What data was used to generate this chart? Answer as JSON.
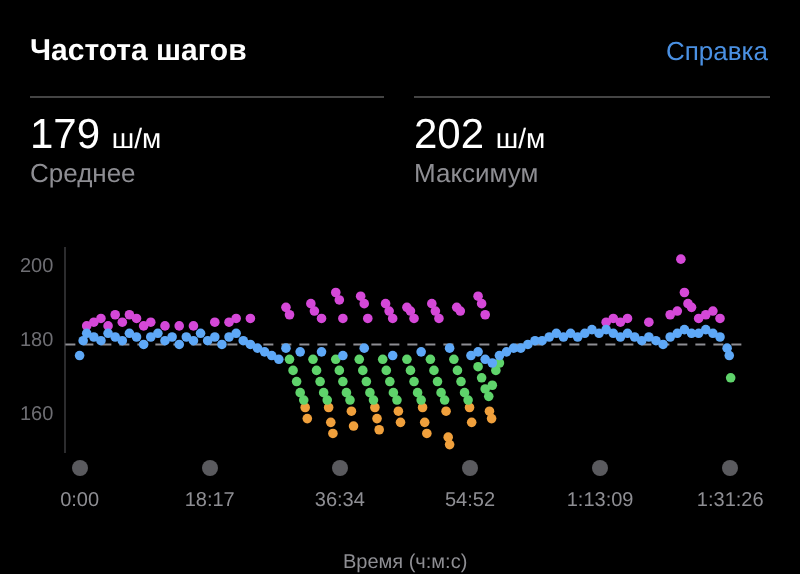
{
  "chart_data": {
    "type": "scatter",
    "title": "Частота шагов",
    "xlabel": "Время (ч:м:с)",
    "annotations": [
      "Справка",
      "179 ш/м",
      "Среднее",
      "202 ш/м",
      "Максимум"
    ],
    "xlim": [
      -2,
      93.5
    ],
    "ylim": [
      150,
      205
    ],
    "xticks": [
      {
        "value": 0,
        "label": "0:00"
      },
      {
        "value": 18.283,
        "label": "18:17"
      },
      {
        "value": 36.567,
        "label": "36:34"
      },
      {
        "value": 54.867,
        "label": "54:52"
      },
      {
        "value": 73.15,
        "label": "1:13:09"
      },
      {
        "value": 91.433,
        "label": "1:31:26"
      }
    ],
    "yticks": [
      160,
      180,
      200
    ],
    "grid": false,
    "legend": false,
    "marker": "circle",
    "ref_lines": [
      {
        "axis": "y",
        "value": 179,
        "label": null,
        "color": "#8e8e93",
        "line_style": "dashed"
      }
    ],
    "series": [
      {
        "color": "#5ea8f7",
        "x": [
          0,
          0.5,
          1,
          2,
          3,
          4,
          5,
          6,
          7,
          8,
          9,
          10,
          11,
          12,
          13,
          14,
          15,
          16,
          17,
          18,
          19,
          20,
          21,
          22,
          23,
          24,
          25,
          26,
          27,
          28,
          29,
          31,
          34,
          37,
          40,
          44,
          48,
          52,
          55,
          56,
          57,
          58,
          59,
          60,
          61,
          62,
          63,
          64,
          65,
          66,
          67,
          68,
          69,
          70,
          71,
          72,
          73,
          74,
          75,
          76,
          77,
          78,
          79,
          80,
          81,
          82,
          83,
          84,
          85,
          86,
          87,
          88,
          89,
          90,
          91,
          91.3
        ],
        "values": [
          176,
          180,
          182,
          181,
          180,
          182,
          181,
          180,
          182,
          181,
          179,
          181,
          182,
          180,
          181,
          179,
          181,
          180,
          182,
          180,
          181,
          179,
          181,
          182,
          180,
          179,
          178,
          177,
          176,
          175,
          178,
          177,
          177,
          176,
          178,
          176,
          177,
          178,
          176,
          177,
          175,
          174,
          176,
          177,
          178,
          178,
          179,
          180,
          180,
          181,
          182,
          181,
          182,
          181,
          182,
          183,
          182,
          183,
          182,
          181,
          182,
          181,
          180,
          181,
          180,
          179,
          181,
          182,
          183,
          182,
          182,
          183,
          182,
          181,
          178,
          176
        ]
      },
      {
        "color": "#d548d8",
        "x": [
          1,
          2,
          3,
          4,
          5,
          6,
          7,
          8,
          9,
          10,
          12,
          14,
          16,
          19,
          21,
          22,
          24,
          29,
          29.5,
          32.5,
          33,
          34,
          36,
          36.5,
          37,
          39.5,
          40,
          40.5,
          43,
          43.5,
          44,
          46,
          46.5,
          47,
          49.5,
          50,
          50.5,
          53,
          53.5,
          56,
          56.5,
          57,
          74,
          75,
          76,
          77,
          80,
          83,
          84,
          84.5,
          85,
          85.5,
          86,
          87,
          88,
          89,
          90
        ],
        "values": [
          184,
          185,
          186,
          184,
          187,
          185,
          187,
          186,
          184,
          185,
          184,
          184,
          184,
          185,
          185,
          186,
          186,
          189,
          187,
          190,
          188,
          186,
          193,
          191,
          186,
          192,
          190,
          186,
          190,
          188,
          186,
          189,
          188,
          186,
          190,
          188,
          186,
          189,
          188,
          192,
          190,
          187,
          185,
          186,
          185,
          186,
          185,
          187,
          188,
          202,
          193,
          190,
          189,
          186,
          187,
          188,
          186
        ]
      },
      {
        "color": "#5fd36b",
        "x": [
          29.5,
          30,
          30.5,
          31,
          31.5,
          32.8,
          33.3,
          33.8,
          34.3,
          34.8,
          36,
          36.5,
          37,
          37.5,
          38,
          39.3,
          39.8,
          40.3,
          40.8,
          41.3,
          42.6,
          43.1,
          43.6,
          44.1,
          44.6,
          46,
          46.5,
          47,
          47.5,
          48,
          49.3,
          49.8,
          50.3,
          50.8,
          51.3,
          52.6,
          53.1,
          53.6,
          54.1,
          54.6,
          56,
          56.5,
          57,
          57.5,
          58,
          58.5,
          59,
          91.5
        ],
        "values": [
          175,
          172,
          169,
          166,
          164,
          175,
          172,
          169,
          166,
          164,
          175,
          172,
          169,
          166,
          164,
          175,
          172,
          169,
          166,
          164,
          175,
          172,
          169,
          166,
          164,
          175,
          172,
          169,
          166,
          164,
          175,
          172,
          169,
          166,
          164,
          175,
          172,
          169,
          166,
          164,
          173,
          170,
          167,
          165,
          168,
          172,
          174,
          170
        ]
      },
      {
        "color": "#f0a03c",
        "x": [
          31.7,
          32,
          35,
          35.3,
          35.6,
          38.2,
          38.5,
          41.5,
          41.8,
          42.1,
          44.8,
          45.1,
          48.2,
          48.5,
          48.8,
          51.5,
          51.8,
          52,
          54.8,
          55.1,
          57.6,
          57.9
        ],
        "values": [
          162,
          159,
          162,
          158,
          155,
          161,
          157,
          162,
          159,
          156,
          161,
          158,
          162,
          158,
          155,
          161,
          154,
          152,
          162,
          158,
          161,
          159
        ]
      }
    ]
  }
}
